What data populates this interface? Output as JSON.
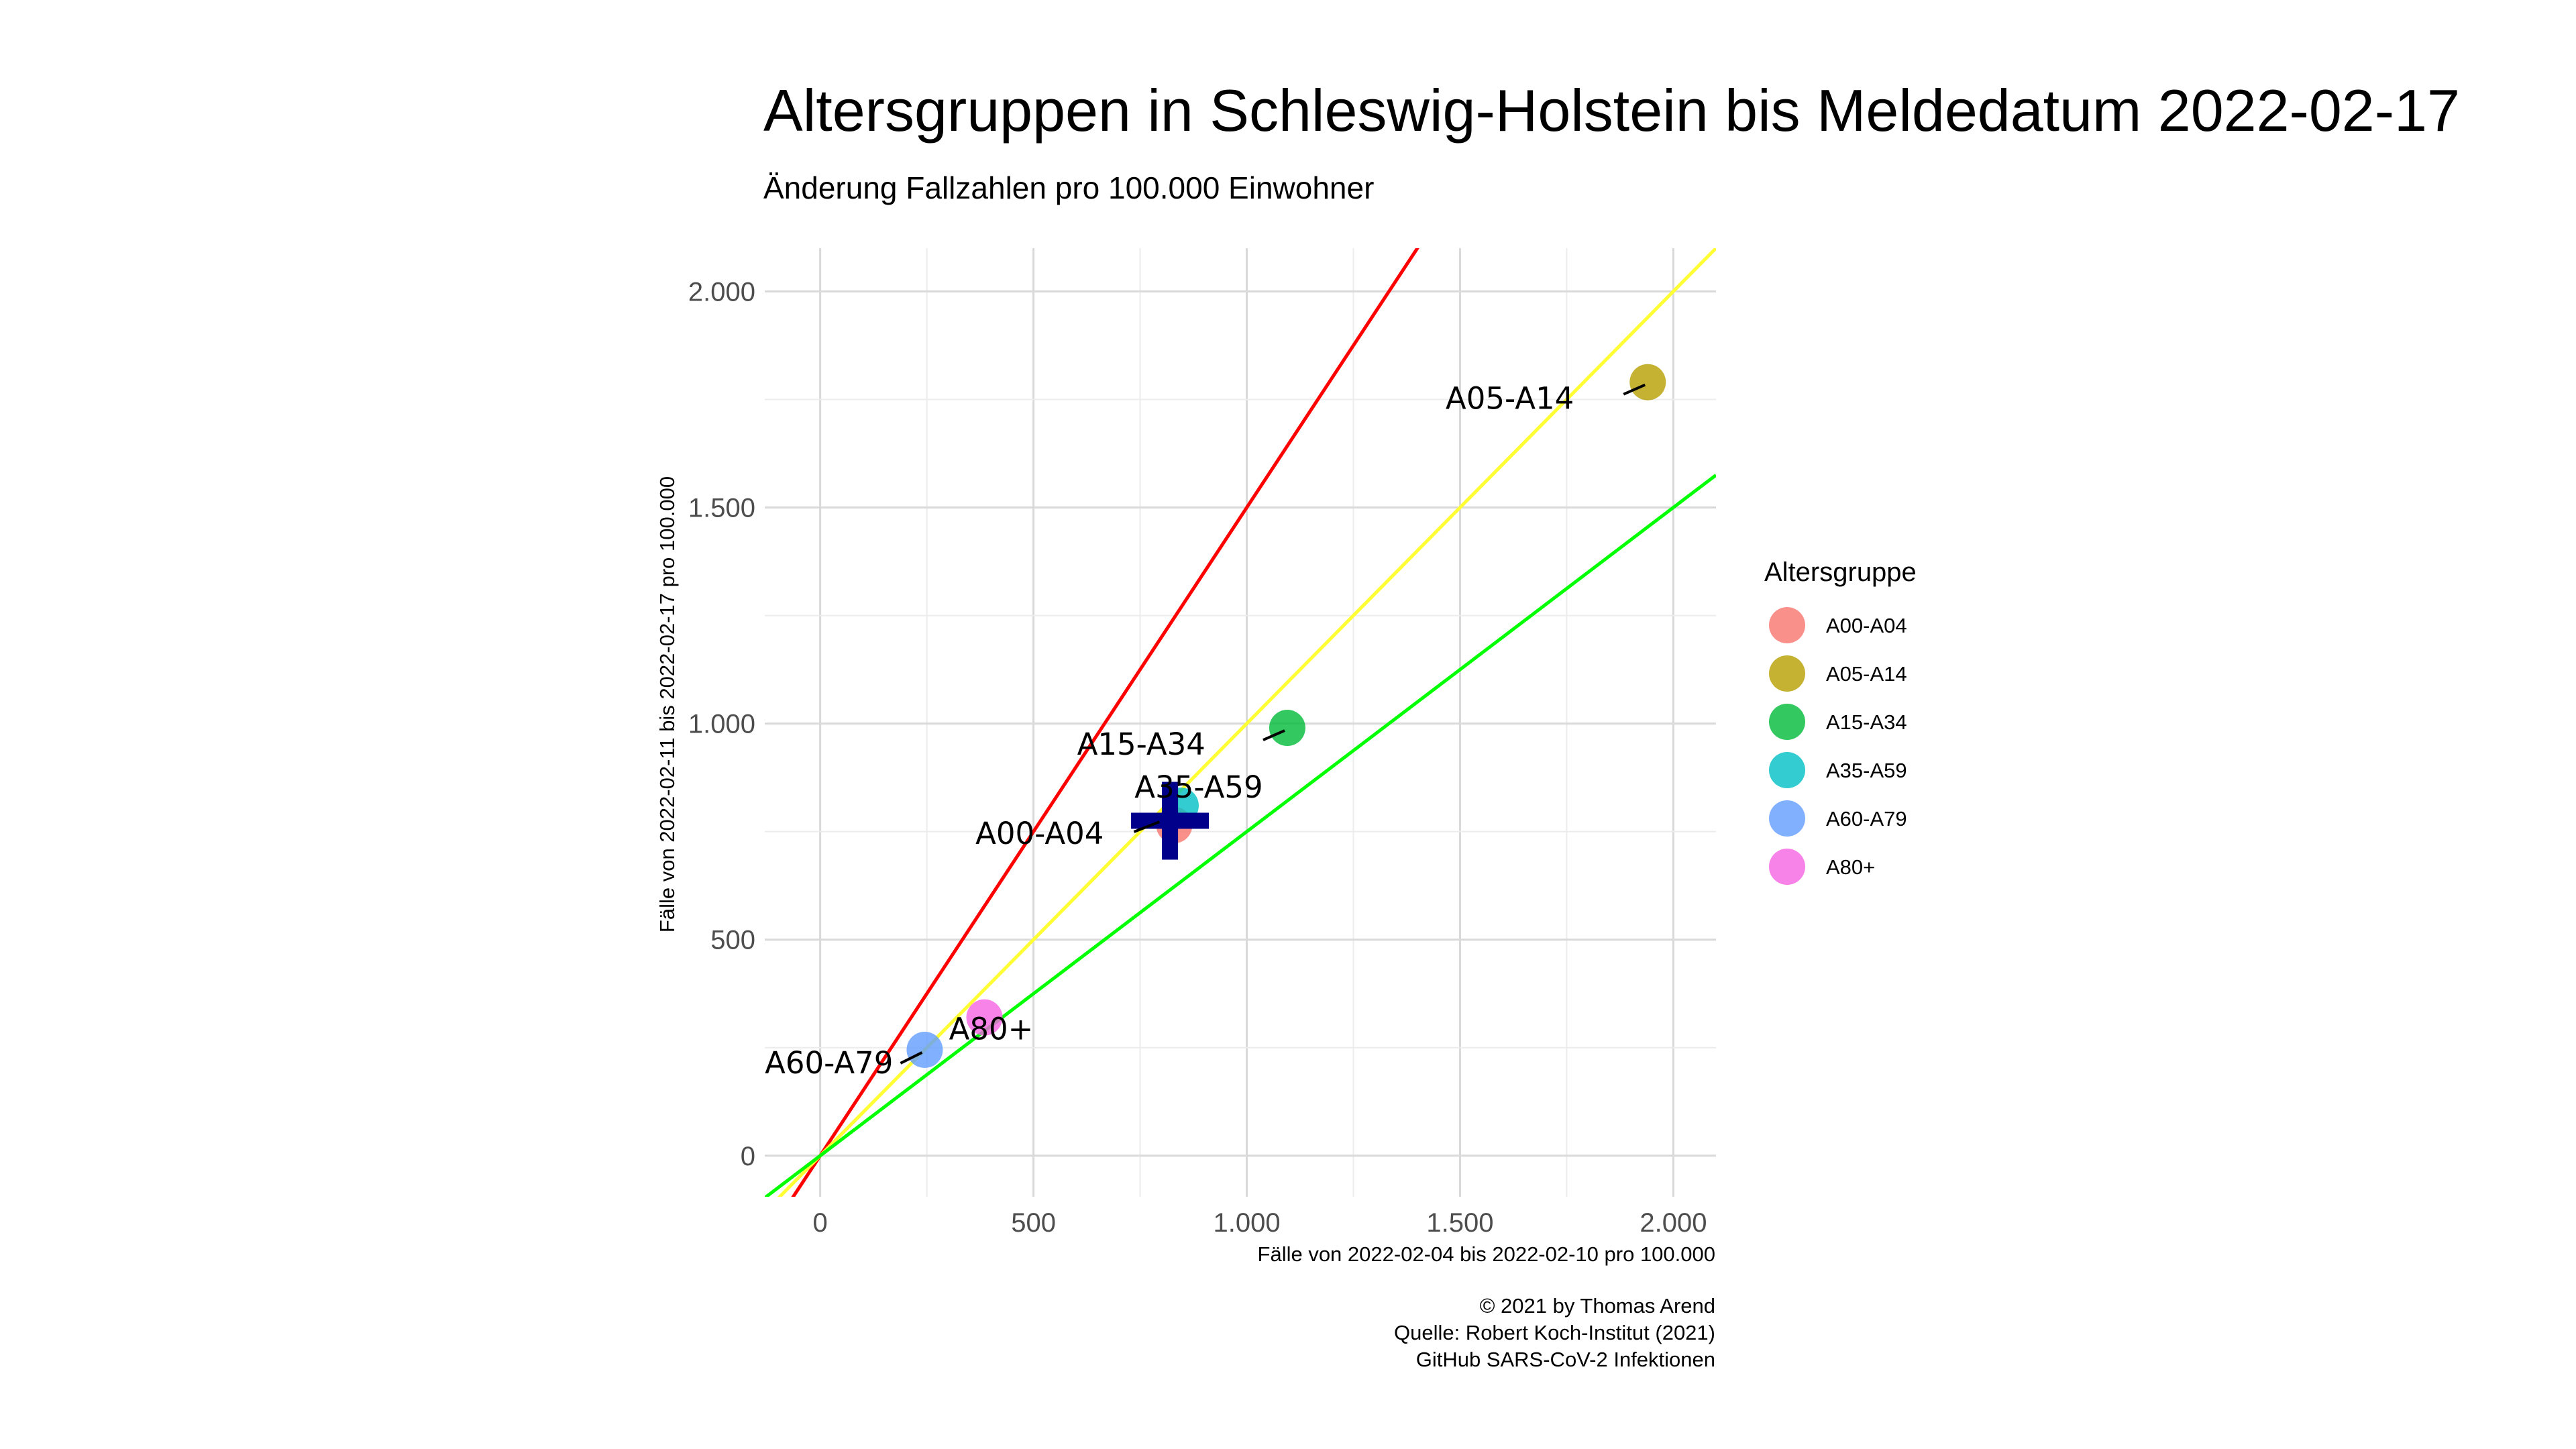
{
  "chart_data": {
    "type": "scatter",
    "title": "Altersgruppen in Schleswig-Holstein bis Meldedatum 2022-02-17",
    "subtitle": "Änderung Fallzahlen pro 100.000 Einwohner",
    "xlabel": "Fälle von 2022-02-04 bis 2022-02-10 pro 100.000",
    "ylabel": "Fälle von 2022-02-11 bis 2022-02-17 pro 100.000",
    "xlim": [
      -130,
      2100
    ],
    "ylim": [
      -95,
      2100
    ],
    "x_ticks": [
      0,
      500,
      1000,
      1500,
      2000
    ],
    "x_tick_labels": [
      "0",
      "500",
      "1.000",
      "1.500",
      "2.000"
    ],
    "y_ticks": [
      0,
      500,
      1000,
      1500,
      2000
    ],
    "y_tick_labels": [
      "0",
      "500",
      "1.000",
      "1.500",
      "2.000"
    ],
    "grid": true,
    "legend_title": "Altersgruppe",
    "legend_position": "right",
    "reference_lines": [
      {
        "slope": 1.5,
        "color": "#ff0000"
      },
      {
        "slope": 1.0,
        "color": "#ffff33"
      },
      {
        "slope": 0.75,
        "color": "#00ff00"
      }
    ],
    "series": [
      {
        "name": "A00-A04",
        "x": 830,
        "y": 765,
        "color": "#F8766D"
      },
      {
        "name": "A05-A14",
        "x": 1940,
        "y": 1790,
        "color": "#B79F00"
      },
      {
        "name": "A15-A34",
        "x": 1095,
        "y": 990,
        "color": "#00BA38"
      },
      {
        "name": "A35-A59",
        "x": 845,
        "y": 810,
        "color": "#00BFC4"
      },
      {
        "name": "A60-A79",
        "x": 245,
        "y": 245,
        "color": "#619CFF"
      },
      {
        "name": "A80+",
        "x": 385,
        "y": 320,
        "color": "#F564E3"
      }
    ],
    "mean_marker": {
      "x": 820,
      "y": 775,
      "color": "#00008b"
    }
  },
  "caption": {
    "line1": "© 2021 by Thomas Arend",
    "line2": "Quelle: Robert Koch-Institut (2021)",
    "line3": "GitHub SARS-CoV-2 Infektionen"
  }
}
